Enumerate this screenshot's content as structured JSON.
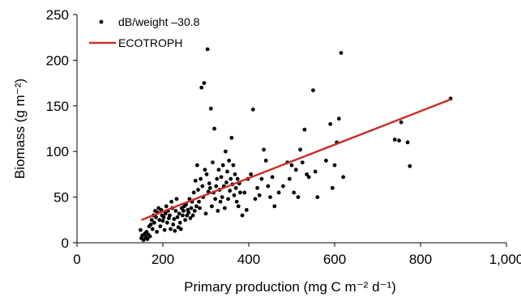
{
  "chart_data": {
    "type": "scatter",
    "xlabel": "Primary production (mg C m⁻² d⁻¹)",
    "ylabel": "Biomass (g m⁻²)",
    "xlim": [
      0,
      1000
    ],
    "ylim": [
      0,
      250
    ],
    "x_ticks": [
      {
        "value": 0,
        "label": "0"
      },
      {
        "value": 200,
        "label": "200"
      },
      {
        "value": 400,
        "label": "400"
      },
      {
        "value": 600,
        "label": "600"
      },
      {
        "value": 800,
        "label": "800"
      },
      {
        "value": 1000,
        "label": "1,000"
      }
    ],
    "y_ticks": [
      {
        "value": 0,
        "label": "0"
      },
      {
        "value": 50,
        "label": "50"
      },
      {
        "value": 100,
        "label": "100"
      },
      {
        "value": 150,
        "label": "150"
      },
      {
        "value": 200,
        "label": "200"
      },
      {
        "value": 250,
        "label": "250"
      }
    ],
    "grid": false,
    "legend_position": "top-left",
    "colors": {
      "points": "#000000",
      "line": "#c8312b"
    },
    "series": [
      {
        "name": "dB/weight –30.8",
        "kind": "scatter",
        "points": [
          [
            148,
            14
          ],
          [
            150,
            5
          ],
          [
            152,
            8
          ],
          [
            155,
            3
          ],
          [
            158,
            10
          ],
          [
            160,
            6
          ],
          [
            162,
            12
          ],
          [
            164,
            4
          ],
          [
            166,
            9
          ],
          [
            168,
            18
          ],
          [
            170,
            7
          ],
          [
            172,
            20
          ],
          [
            174,
            25
          ],
          [
            176,
            15
          ],
          [
            178,
            30
          ],
          [
            180,
            22
          ],
          [
            182,
            35
          ],
          [
            184,
            28
          ],
          [
            186,
            12
          ],
          [
            188,
            33
          ],
          [
            190,
            38
          ],
          [
            192,
            25
          ],
          [
            194,
            18
          ],
          [
            196,
            36
          ],
          [
            198,
            30
          ],
          [
            200,
            24
          ],
          [
            202,
            28
          ],
          [
            204,
            14
          ],
          [
            206,
            32
          ],
          [
            208,
            40
          ],
          [
            210,
            22
          ],
          [
            212,
            35
          ],
          [
            214,
            27
          ],
          [
            216,
            30
          ],
          [
            218,
            15
          ],
          [
            220,
            45
          ],
          [
            222,
            38
          ],
          [
            224,
            20
          ],
          [
            226,
            26
          ],
          [
            228,
            13
          ],
          [
            230,
            35
          ],
          [
            232,
            48
          ],
          [
            234,
            28
          ],
          [
            236,
            17
          ],
          [
            238,
            32
          ],
          [
            240,
            22
          ],
          [
            242,
            15
          ],
          [
            244,
            38
          ],
          [
            246,
            30
          ],
          [
            248,
            35
          ],
          [
            250,
            40
          ],
          [
            252,
            25
          ],
          [
            254,
            42
          ],
          [
            256,
            30
          ],
          [
            258,
            36
          ],
          [
            260,
            33
          ],
          [
            262,
            48
          ],
          [
            264,
            27
          ],
          [
            266,
            38
          ],
          [
            268,
            45
          ],
          [
            270,
            30
          ],
          [
            272,
            55
          ],
          [
            274,
            35
          ],
          [
            276,
            68
          ],
          [
            278,
            40
          ],
          [
            280,
            85
          ],
          [
            282,
            58
          ],
          [
            284,
            45
          ],
          [
            286,
            38
          ],
          [
            288,
            70
          ],
          [
            290,
            170
          ],
          [
            292,
            62
          ],
          [
            294,
            50
          ],
          [
            296,
            175
          ],
          [
            298,
            80
          ],
          [
            300,
            32
          ],
          [
            302,
            75
          ],
          [
            304,
            212
          ],
          [
            306,
            56
          ],
          [
            308,
            65
          ],
          [
            310,
            60
          ],
          [
            312,
            147
          ],
          [
            314,
            40
          ],
          [
            316,
            88
          ],
          [
            318,
            55
          ],
          [
            320,
            125
          ],
          [
            322,
            48
          ],
          [
            324,
            62
          ],
          [
            326,
            70
          ],
          [
            328,
            35
          ],
          [
            330,
            80
          ],
          [
            332,
            58
          ],
          [
            334,
            45
          ],
          [
            336,
            72
          ],
          [
            338,
            50
          ],
          [
            340,
            85
          ],
          [
            342,
            62
          ],
          [
            344,
            38
          ],
          [
            346,
            100
          ],
          [
            348,
            66
          ],
          [
            350,
            78
          ],
          [
            352,
            48
          ],
          [
            354,
            90
          ],
          [
            356,
            57
          ],
          [
            358,
            70
          ],
          [
            360,
            115
          ],
          [
            362,
            64
          ],
          [
            364,
            85
          ],
          [
            366,
            52
          ],
          [
            368,
            75
          ],
          [
            370,
            60
          ],
          [
            372,
            45
          ],
          [
            374,
            70
          ],
          [
            376,
            40
          ],
          [
            378,
            65
          ],
          [
            380,
            55
          ],
          [
            385,
            30
          ],
          [
            390,
            55
          ],
          [
            395,
            36
          ],
          [
            398,
            70
          ],
          [
            405,
            75
          ],
          [
            410,
            146
          ],
          [
            415,
            48
          ],
          [
            420,
            60
          ],
          [
            425,
            52
          ],
          [
            430,
            70
          ],
          [
            435,
            102
          ],
          [
            440,
            90
          ],
          [
            445,
            62
          ],
          [
            450,
            50
          ],
          [
            455,
            72
          ],
          [
            460,
            40
          ],
          [
            470,
            55
          ],
          [
            480,
            62
          ],
          [
            490,
            88
          ],
          [
            495,
            70
          ],
          [
            500,
            85
          ],
          [
            505,
            55
          ],
          [
            510,
            80
          ],
          [
            515,
            50
          ],
          [
            520,
            102
          ],
          [
            525,
            88
          ],
          [
            530,
            124
          ],
          [
            535,
            75
          ],
          [
            540,
            72
          ],
          [
            550,
            167
          ],
          [
            555,
            78
          ],
          [
            560,
            50
          ],
          [
            580,
            90
          ],
          [
            590,
            130
          ],
          [
            595,
            60
          ],
          [
            600,
            85
          ],
          [
            605,
            110
          ],
          [
            610,
            136
          ],
          [
            615,
            208
          ],
          [
            620,
            72
          ],
          [
            740,
            113
          ],
          [
            750,
            112
          ],
          [
            755,
            132
          ],
          [
            770,
            110
          ],
          [
            775,
            84
          ],
          [
            870,
            158
          ]
        ]
      },
      {
        "name": "ECOTROPH",
        "kind": "line",
        "points": [
          [
            150,
            25
          ],
          [
            870,
            157
          ]
        ]
      }
    ]
  }
}
